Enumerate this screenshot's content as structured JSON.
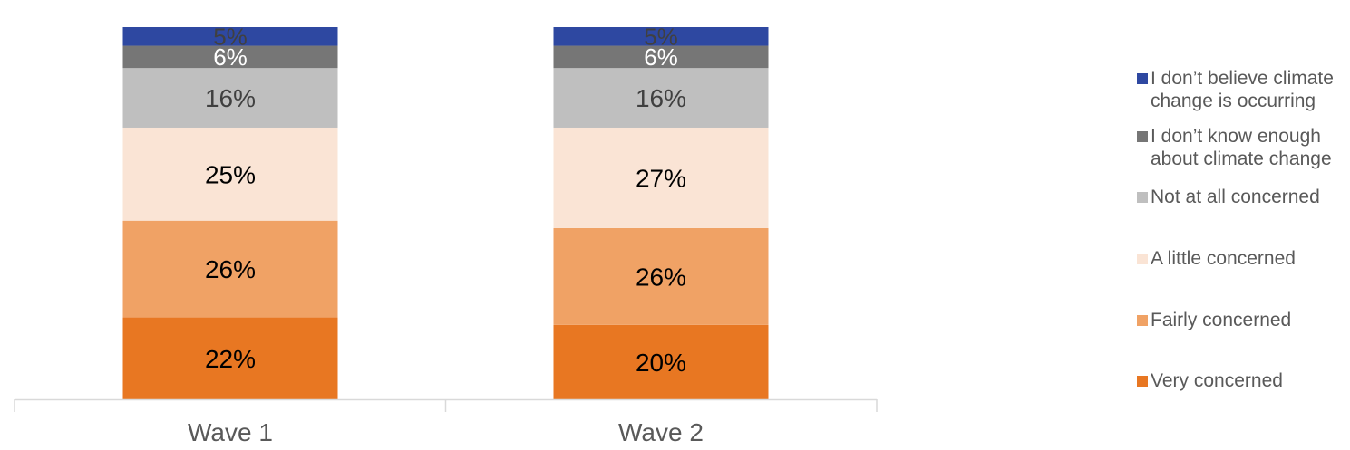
{
  "chart_data": {
    "type": "bar",
    "stacked": true,
    "categories": [
      "Wave 1",
      "Wave 2"
    ],
    "series": [
      {
        "name": "Very concerned",
        "values": [
          22,
          20
        ],
        "labels": [
          "22%",
          "20%"
        ],
        "color": "#E87722",
        "text_color": "#000000"
      },
      {
        "name": "Fairly concerned",
        "values": [
          26,
          26
        ],
        "labels": [
          "26%",
          "26%"
        ],
        "color": "#F0A265",
        "text_color": "#000000"
      },
      {
        "name": "A little concerned",
        "values": [
          25,
          27
        ],
        "labels": [
          "25%",
          "27%"
        ],
        "color": "#FAE4D5",
        "text_color": "#000000"
      },
      {
        "name": "Not at all concerned",
        "values": [
          16,
          16
        ],
        "labels": [
          "16%",
          "16%"
        ],
        "color": "#BFBFBF",
        "text_color": "#404040"
      },
      {
        "name": "I don’t know enough about climate change",
        "values": [
          6,
          6
        ],
        "labels": [
          "6%",
          "6%"
        ],
        "color": "#767676",
        "text_color": "#FFFFFF"
      },
      {
        "name": "I don’t believe climate change is occurring",
        "values": [
          5,
          5
        ],
        "labels": [
          "5%",
          "5%"
        ],
        "color": "#2E48A1",
        "text_color": "#404040"
      }
    ],
    "legend_position": "right",
    "legend_order": "top-to-bottom reverses stack order",
    "grid": false,
    "axis_color": "#D9D9D9",
    "tick_label_color": "#595959"
  }
}
